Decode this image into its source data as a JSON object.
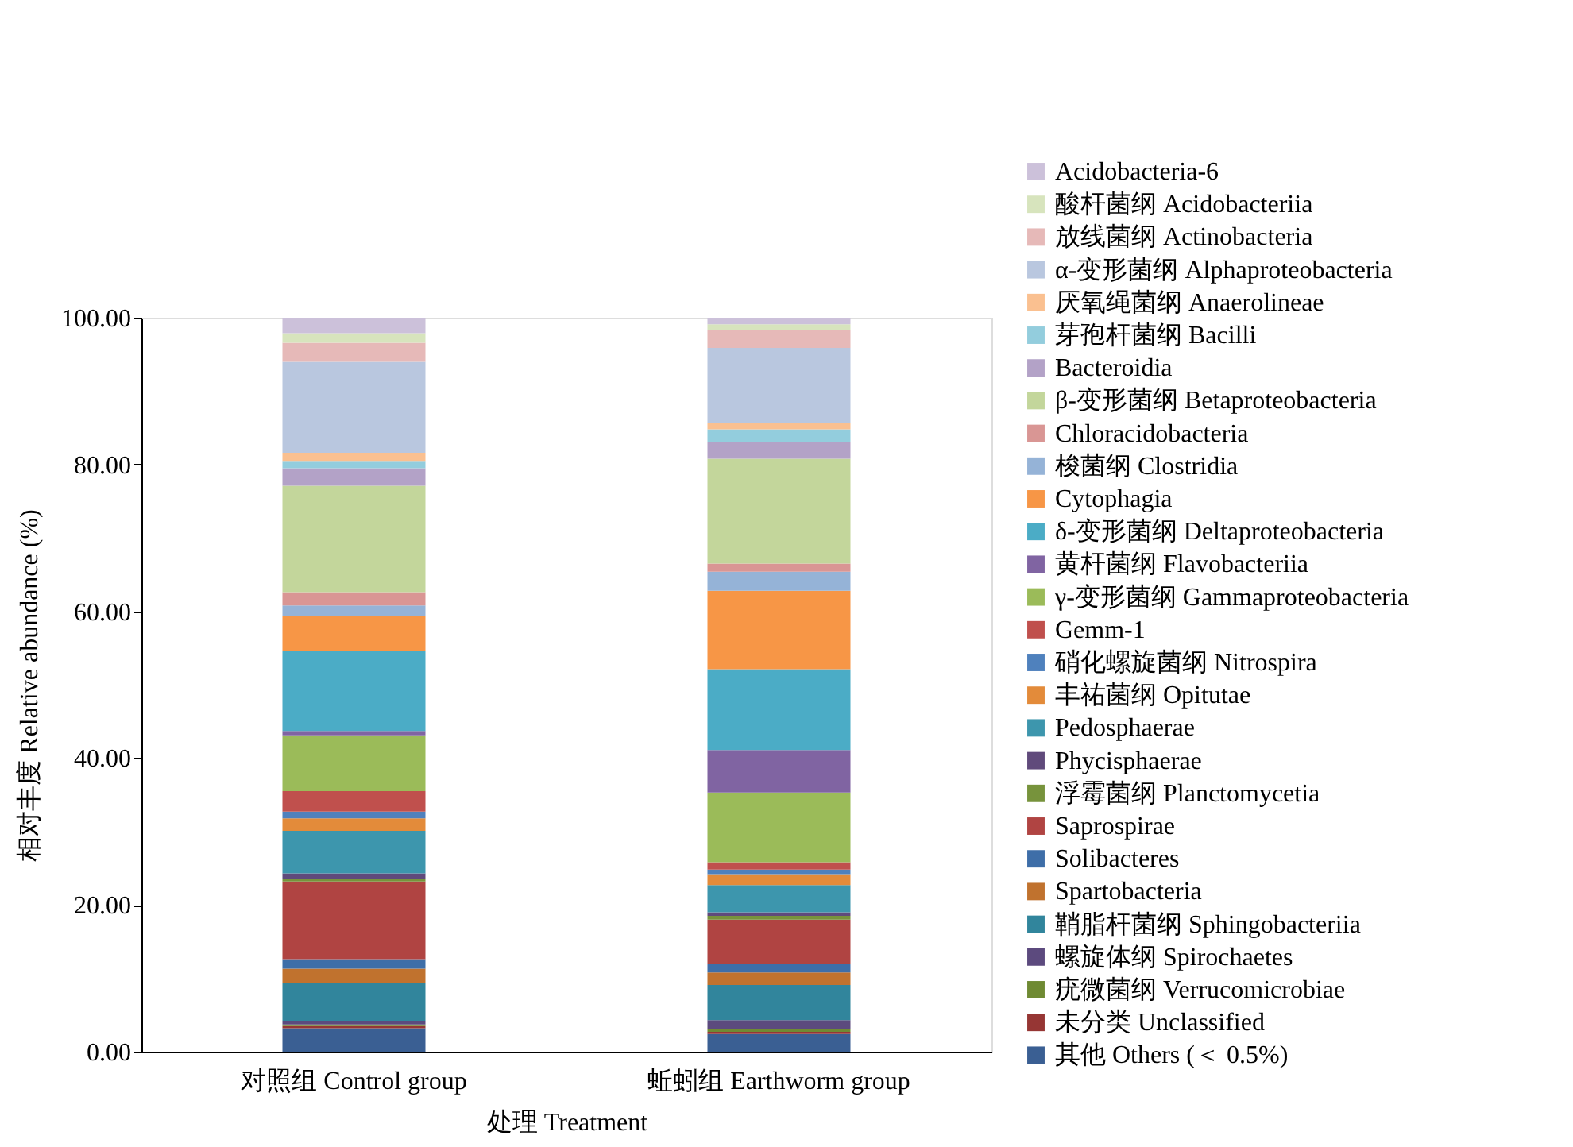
{
  "chart_data": {
    "type": "bar",
    "stacked": true,
    "xlabel": "处理  Treatment",
    "ylabel": "相对丰度 Relative abundance (%)",
    "categories": [
      "对照组 Control group",
      "蚯蚓组 Earthworm group"
    ],
    "ylim": [
      0,
      100
    ],
    "yticks": [
      {
        "value": 0,
        "label": "0.00"
      },
      {
        "value": 20,
        "label": "20.00"
      },
      {
        "value": 40,
        "label": "40.00"
      },
      {
        "value": 60,
        "label": "60.00"
      },
      {
        "value": 80,
        "label": "80.00"
      },
      {
        "value": 100,
        "label": "100.00"
      }
    ],
    "legend": "right",
    "grid": false,
    "series": [
      {
        "name": "其他 Others (＜ 0.5%)",
        "color": "#3a5f93",
        "values": [
          3.2,
          2.4
        ]
      },
      {
        "name": "未分类 Unclassified",
        "color": "#963634",
        "values": [
          0.3,
          0.3
        ]
      },
      {
        "name": "疣微菌纲 Verrucomicrobiae",
        "color": "#6f8a33",
        "values": [
          0.2,
          0.4
        ]
      },
      {
        "name": "螺旋体纲 Spirochaetes",
        "color": "#5c4a7e",
        "values": [
          0.5,
          1.2
        ]
      },
      {
        "name": "鞘脂杆菌纲 Sphingobacteriia",
        "color": "#31859c",
        "values": [
          5.1,
          4.8
        ]
      },
      {
        "name": "Spartobacteria",
        "color": "#c0722e",
        "values": [
          2.0,
          1.7
        ]
      },
      {
        "name": "Solibacteres",
        "color": "#3e6ea8",
        "values": [
          1.3,
          1.1
        ]
      },
      {
        "name": "Saprospirae",
        "color": "#b04442",
        "values": [
          10.6,
          6.1
        ]
      },
      {
        "name": "浮霉菌纲 Planctomycetia",
        "color": "#77933c",
        "values": [
          0.3,
          0.5
        ]
      },
      {
        "name": "Phycisphaerae",
        "color": "#604a7b",
        "values": [
          0.8,
          0.5
        ]
      },
      {
        "name": "Pedosphaerae",
        "color": "#3d96ad",
        "values": [
          5.8,
          3.7
        ]
      },
      {
        "name": "丰祐菌纲 Opitutae",
        "color": "#e38b3a",
        "values": [
          1.7,
          1.5
        ]
      },
      {
        "name": "硝化螺旋菌纲 Nitrospira",
        "color": "#4f81bd",
        "values": [
          0.9,
          0.6
        ]
      },
      {
        "name": "Gemm-1",
        "color": "#c0504d",
        "values": [
          2.8,
          1.0
        ]
      },
      {
        "name": "γ-变形菌纲 Gammaproteobacteria",
        "color": "#9bbb59",
        "values": [
          7.6,
          9.5
        ]
      },
      {
        "name": "黄杆菌纲 Flavobacteriia",
        "color": "#8064a2",
        "values": [
          0.6,
          5.8
        ]
      },
      {
        "name": "δ-变形菌纲 Deltaproteobacteria",
        "color": "#4bacc6",
        "values": [
          10.9,
          11.0
        ]
      },
      {
        "name": "Cytophagia",
        "color": "#f79646",
        "values": [
          4.7,
          10.7
        ]
      },
      {
        "name": "梭菌纲 Clostridia",
        "color": "#95b3d7",
        "values": [
          1.5,
          2.6
        ]
      },
      {
        "name": "Chloracidobacteria",
        "color": "#d99694",
        "values": [
          1.8,
          1.1
        ]
      },
      {
        "name": "β-变形菌纲 Betaproteobacteria",
        "color": "#c3d69b",
        "values": [
          14.5,
          14.3
        ]
      },
      {
        "name": "Bacteroidia",
        "color": "#b3a2c7",
        "values": [
          2.4,
          2.2
        ]
      },
      {
        "name": "芽孢杆菌纲 Bacilli",
        "color": "#93cddd",
        "values": [
          1.0,
          1.8
        ]
      },
      {
        "name": "厌氧绳菌纲 Anaerolineae",
        "color": "#fac090",
        "values": [
          1.1,
          0.9
        ]
      },
      {
        "name": "α-变形菌纲 Alphaproteobacteria",
        "color": "#b9c7df",
        "values": [
          12.4,
          10.2
        ]
      },
      {
        "name": "放线菌纲 Actinobacteria",
        "color": "#e6b9b8",
        "values": [
          2.6,
          2.4
        ]
      },
      {
        "name": "酸杆菌纲 Acidobacteriia",
        "color": "#d7e4bd",
        "values": [
          1.3,
          0.8
        ]
      },
      {
        "name": "Acidobacteria-6",
        "color": "#ccc1da",
        "values": [
          2.1,
          0.9
        ]
      }
    ]
  }
}
